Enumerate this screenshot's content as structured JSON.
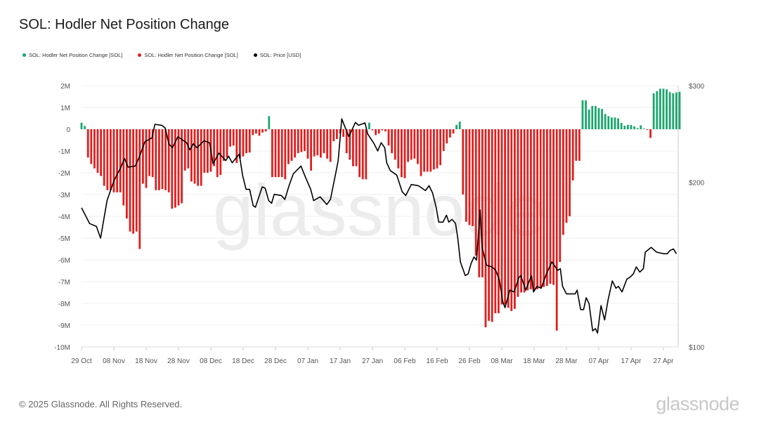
{
  "header": {
    "title": "SOL: Hodler Net Position Change"
  },
  "legend": [
    {
      "label": "SOL: Hodler Net Position Change [SOL]",
      "color": "#1aa66e"
    },
    {
      "label": "SOL: Hodler Net Position Change [SOL]",
      "color": "#e01f1f"
    },
    {
      "label": "SOL: Price [USD]",
      "color": "#000000"
    }
  ],
  "watermark": "glassnode",
  "footer": {
    "copyright": "© 2025 Glassnode. All Rights Reserved.",
    "logo": "glassnode"
  },
  "chart_data": {
    "type": "bar+line",
    "title": "SOL: Hodler Net Position Change",
    "x_unit": "days since 29 Oct",
    "x_tick_labels": [
      "29 Oct",
      "08 Nov",
      "18 Nov",
      "28 Nov",
      "08 Dec",
      "18 Dec",
      "28 Dec",
      "07 Jan",
      "17 Jan",
      "27 Jan",
      "06 Feb",
      "16 Feb",
      "26 Feb",
      "08 Mar",
      "18 Mar",
      "28 Mar",
      "07 Apr",
      "17 Apr",
      "27 Apr"
    ],
    "x_tick_days": [
      0,
      10,
      20,
      30,
      40,
      50,
      60,
      70,
      80,
      90,
      100,
      110,
      120,
      130,
      140,
      150,
      160,
      170,
      180
    ],
    "y_left": {
      "unit": "M SOL",
      "range": [
        -10,
        2
      ],
      "ticks": [
        2,
        1,
        0,
        -1,
        -2,
        -3,
        -4,
        -5,
        -6,
        -7,
        -8,
        -9,
        -10
      ],
      "tick_labels": [
        "2M",
        "1M",
        "0",
        "-1M",
        "-2M",
        "-3M",
        "-4M",
        "-5M",
        "-6M",
        "-7M",
        "-8M",
        "-9M",
        "-10M"
      ]
    },
    "y_right": {
      "unit": "USD",
      "scale": "log",
      "range": [
        100,
        300
      ],
      "ticks": [
        300,
        200,
        100
      ],
      "tick_labels": [
        "$300",
        "$200",
        "$100"
      ]
    },
    "grid": true,
    "bars_positive_color": "#1aa66e",
    "bars_negative_color": "#e01f1f",
    "net_position_change_M": [
      0.3,
      0.15,
      -1.3,
      -1.6,
      -1.8,
      -2.0,
      -2.15,
      -2.6,
      -2.8,
      -2.8,
      -2.9,
      -2.9,
      -2.9,
      -3.5,
      -4.1,
      -4.7,
      -4.8,
      -4.7,
      -5.5,
      -2.5,
      -2.7,
      -2.15,
      -2.2,
      -2.8,
      -2.8,
      -2.75,
      -2.8,
      -2.9,
      -3.65,
      -3.6,
      -3.5,
      -3.4,
      -1.9,
      -1.8,
      -2.4,
      -2.5,
      -2.6,
      -2.6,
      -2.0,
      -2.0,
      -1.95,
      -1.7,
      -2.2,
      -2.1,
      -1.45,
      -1.3,
      -0.8,
      -0.75,
      -1.55,
      -1.35,
      -1.25,
      -1.1,
      -1.07,
      -0.27,
      -0.2,
      -0.3,
      -0.15,
      -0.1,
      0.6,
      -2.2,
      -2.2,
      -2.2,
      -2.2,
      -2.3,
      -1.6,
      -1.45,
      -1.3,
      -1.1,
      -1.05,
      -1.0,
      -1.35,
      -1.9,
      -1.25,
      -1.2,
      -1.3,
      -1.1,
      -1.35,
      -1.5,
      -0.55,
      -0.45,
      -0.2,
      -0.35,
      -1.1,
      -1.4,
      -1.7,
      -1.7,
      -2.2,
      -2.3,
      -2.3,
      0.3,
      -0.05,
      -0.27,
      -0.2,
      -0.05,
      -0.1,
      -0.75,
      -1.1,
      -1.4,
      -1.8,
      -2.2,
      -2.25,
      -1.5,
      -1.4,
      -1.35,
      -1.6,
      -2.15,
      -1.95,
      -1.95,
      -1.95,
      -1.85,
      -1.8,
      -1.65,
      -1.0,
      -0.65,
      -0.38,
      -0.2,
      0.2,
      0.35,
      -3.0,
      -4.25,
      -4.4,
      -4.45,
      -5.8,
      -6.8,
      -6.8,
      -9.1,
      -8.8,
      -8.85,
      -8.45,
      -8.45,
      -8.05,
      -8.05,
      -8.2,
      -8.35,
      -8.25,
      -7.7,
      -7.5,
      -7.5,
      -7.4,
      -7.35,
      -7.4,
      -7.35,
      -7.3,
      -7.25,
      -7.2,
      -7.1,
      -7.15,
      -9.25,
      -6.1,
      -4.85,
      -4.3,
      -4.0,
      -2.35,
      -1.45,
      -1.45,
      1.33,
      1.33,
      0.9,
      1.07,
      1.07,
      0.97,
      0.93,
      0.7,
      0.6,
      0.54,
      0.54,
      0.5,
      0.29,
      0.16,
      0.2,
      0.2,
      0.13,
      0.05,
      0.18,
      0.03,
      -0.03,
      -0.4,
      1.65,
      1.75,
      1.86,
      1.86,
      1.83,
      1.7,
      1.65,
      1.69,
      1.72
    ],
    "price_usd": [
      [
        0,
        179.5
      ],
      [
        2.5,
        168
      ],
      [
        4.6,
        166
      ],
      [
        5.9,
        158
      ],
      [
        7.9,
        185
      ],
      [
        10,
        201
      ],
      [
        12.2,
        213
      ],
      [
        13.3,
        221
      ],
      [
        14.4,
        213
      ],
      [
        16.6,
        214
      ],
      [
        17.7,
        221
      ],
      [
        19.6,
        237
      ],
      [
        21.8,
        241
      ],
      [
        22.7,
        255
      ],
      [
        24.8,
        254
      ],
      [
        25.9,
        251
      ],
      [
        27,
        235
      ],
      [
        28.1,
        231
      ],
      [
        29.8,
        242
      ],
      [
        32.5,
        236
      ],
      [
        33.5,
        229
      ],
      [
        34.6,
        235
      ],
      [
        35.7,
        231
      ],
      [
        37.9,
        238
      ],
      [
        39.6,
        236
      ],
      [
        40.7,
        216
      ],
      [
        42.5,
        226
      ],
      [
        44.6,
        219
      ],
      [
        45.5,
        223
      ],
      [
        46.6,
        217
      ],
      [
        48.8,
        225
      ],
      [
        49.8,
        206
      ],
      [
        50.9,
        194
      ],
      [
        52,
        194
      ],
      [
        53.1,
        181
      ],
      [
        53.8,
        180
      ],
      [
        55.9,
        196
      ],
      [
        56.8,
        195
      ],
      [
        57.9,
        185
      ],
      [
        58.8,
        183
      ],
      [
        59.6,
        190
      ],
      [
        61.8,
        189
      ],
      [
        62.9,
        186
      ],
      [
        64.2,
        197
      ],
      [
        65.5,
        207
      ],
      [
        67.9,
        214
      ],
      [
        69,
        206
      ],
      [
        70.9,
        194
      ],
      [
        71.8,
        185
      ],
      [
        73.8,
        188
      ],
      [
        75.9,
        182
      ],
      [
        77,
        186
      ],
      [
        78.8,
        210
      ],
      [
        79.4,
        219
      ],
      [
        80.5,
        261
      ],
      [
        81.4,
        253
      ],
      [
        82.7,
        242
      ],
      [
        84.7,
        257
      ],
      [
        85.7,
        254
      ],
      [
        87.7,
        256.5
      ],
      [
        88.5,
        245
      ],
      [
        90.5,
        235
      ],
      [
        91.6,
        228
      ],
      [
        92.7,
        236
      ],
      [
        93.8,
        231
      ],
      [
        94.4,
        217
      ],
      [
        95.5,
        210
      ],
      [
        97.5,
        206
      ],
      [
        99.2,
        192
      ],
      [
        100.3,
        189
      ],
      [
        102,
        198
      ],
      [
        104.2,
        197
      ],
      [
        106.4,
        193
      ],
      [
        107.5,
        197
      ],
      [
        108.6,
        191
      ],
      [
        109.7,
        180
      ],
      [
        110.5,
        169
      ],
      [
        111.8,
        169
      ],
      [
        112.9,
        174
      ],
      [
        113.6,
        169
      ],
      [
        114.6,
        171
      ],
      [
        115.7,
        168
      ],
      [
        116.4,
        158
      ],
      [
        117.2,
        143
      ],
      [
        118.7,
        135
      ],
      [
        119.6,
        136
      ],
      [
        120.5,
        142
      ],
      [
        121.4,
        146
      ],
      [
        122.2,
        144
      ],
      [
        123.3,
        178
      ],
      [
        123.9,
        152
      ],
      [
        125.3,
        141
      ],
      [
        127,
        140
      ],
      [
        128.1,
        138
      ],
      [
        129.2,
        133
      ],
      [
        130.3,
        121
      ],
      [
        131,
        118
      ],
      [
        132.5,
        127
      ],
      [
        133.8,
        126
      ],
      [
        135.3,
        134
      ],
      [
        135.9,
        135
      ],
      [
        137.4,
        127
      ],
      [
        139.2,
        135
      ],
      [
        139.8,
        126
      ],
      [
        140.9,
        129
      ],
      [
        142.2,
        128
      ],
      [
        143.8,
        136
      ],
      [
        145.5,
        143
      ],
      [
        147.3,
        138
      ],
      [
        148.1,
        139
      ],
      [
        148.8,
        129
      ],
      [
        150,
        125
      ],
      [
        152.7,
        125
      ],
      [
        153.3,
        127
      ],
      [
        154.4,
        117
      ],
      [
        155.3,
        117
      ],
      [
        156.1,
        123
      ],
      [
        157,
        120
      ],
      [
        158.1,
        107
      ],
      [
        159,
        108
      ],
      [
        159.6,
        106
      ],
      [
        160.7,
        119
      ],
      [
        161.8,
        112
      ],
      [
        162.9,
        122
      ],
      [
        164.2,
        132
      ],
      [
        165.3,
        128
      ],
      [
        166.1,
        129
      ],
      [
        167.2,
        126
      ],
      [
        168.7,
        133
      ],
      [
        169.6,
        134
      ],
      [
        170.7,
        136
      ],
      [
        171.6,
        140
      ],
      [
        172.7,
        137
      ],
      [
        173.8,
        139
      ],
      [
        174.4,
        149
      ],
      [
        176.2,
        152
      ],
      [
        177.9,
        149
      ],
      [
        180.1,
        148
      ],
      [
        181.2,
        148
      ],
      [
        182,
        150
      ],
      [
        183.1,
        151
      ],
      [
        184,
        148
      ]
    ]
  }
}
